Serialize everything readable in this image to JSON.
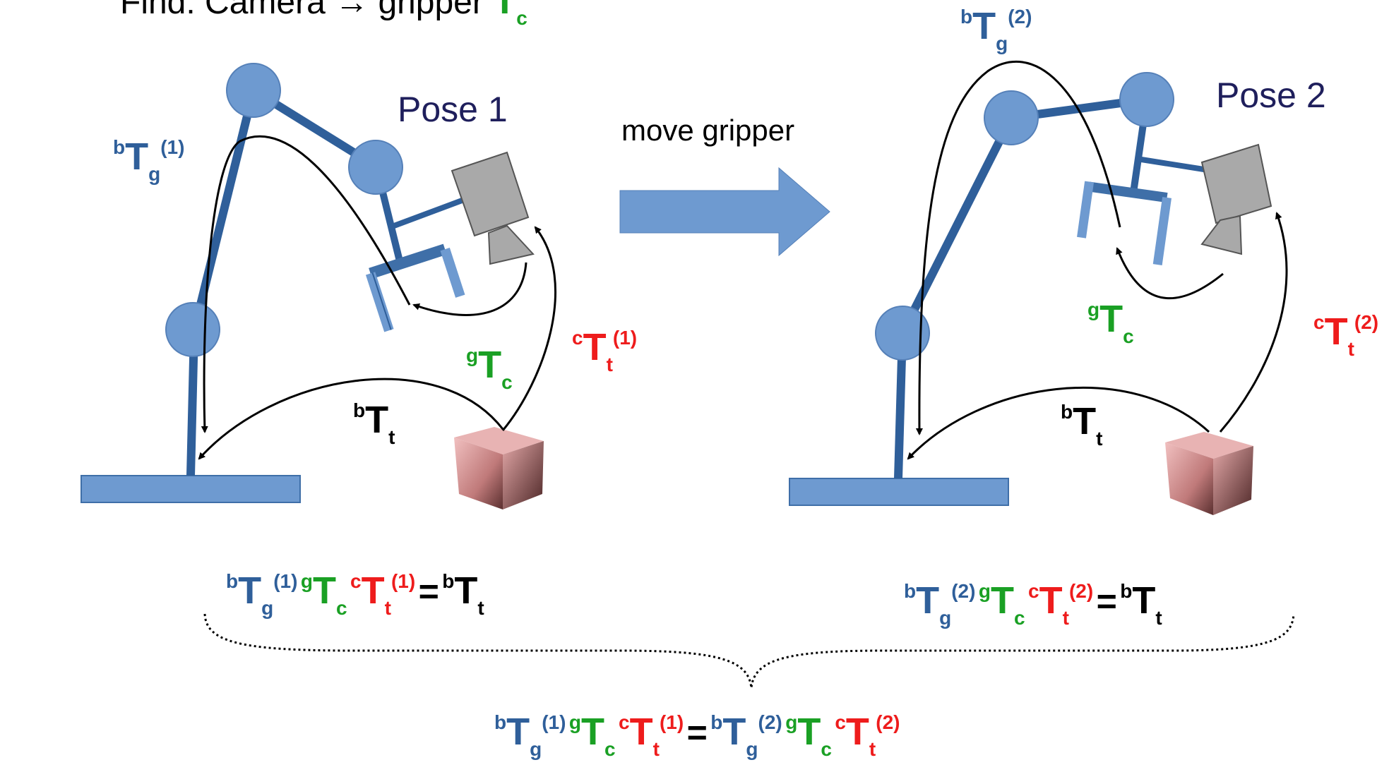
{
  "title": {
    "prefix": "Find: Camera → gripper ",
    "T": "T",
    "sub": "c"
  },
  "pose1_label": "Pose 1",
  "pose2_label": "Pose 2",
  "move_label": "move gripper",
  "symbols": {
    "T": "T",
    "b": "b",
    "g": "g",
    "c": "c",
    "t": "t",
    "n1": "(1)",
    "n2": "(2)",
    "eq": "="
  },
  "colors": {
    "robot": "#2f5f9a",
    "robot_light": "#6e9ad0",
    "base_to_gripper": "#2f5f9a",
    "gripper_to_camera": "#1aa024",
    "camera_to_target": "#ee1c1c",
    "base_to_target": "#000000",
    "camera_body": "#a9a9a9",
    "target_cube": "#c98484"
  }
}
